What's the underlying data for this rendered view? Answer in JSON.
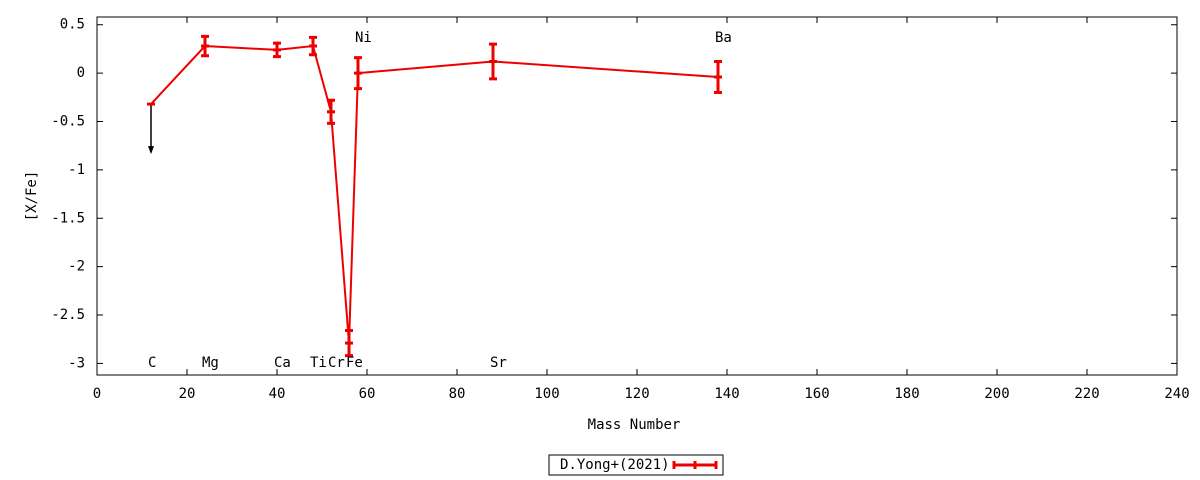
{
  "chart_data": {
    "type": "line",
    "xlabel": "Mass Number",
    "ylabel": "[X/Fe]",
    "x": [
      12,
      24,
      40,
      48,
      52,
      56,
      58,
      88,
      138
    ],
    "series": [
      {
        "name": "D.Yong+(2021)",
        "color": "#ee0000",
        "values": [
          -0.32,
          0.28,
          0.24,
          0.28,
          -0.4,
          -2.79,
          0.0,
          0.12,
          -0.04
        ],
        "errors": [
          null,
          0.1,
          0.07,
          0.09,
          0.12,
          0.13,
          0.16,
          0.18,
          0.16
        ],
        "upper_limits": [
          true,
          false,
          false,
          false,
          false,
          false,
          false,
          false,
          false
        ]
      }
    ],
    "upper_limit_color": "#000000",
    "point_labels": [
      "C",
      "Mg",
      "Ca",
      "Ti",
      "Cr",
      "Fe",
      "Ni",
      "Sr",
      "Ba"
    ],
    "point_label_positions": [
      "bottom",
      "bottom",
      "bottom",
      "bottom",
      "bottom",
      "bottom",
      "top",
      "bottom",
      "top"
    ],
    "xlim": [
      0,
      240
    ],
    "xticks": [
      0,
      20,
      40,
      60,
      80,
      100,
      120,
      140,
      160,
      180,
      200,
      220,
      240
    ],
    "ylim": [
      -3.12,
      0.58
    ],
    "yticks": [
      0.5,
      0,
      -0.5,
      -1,
      -1.5,
      -2,
      -2.5,
      -3
    ],
    "legend": "bottom"
  }
}
